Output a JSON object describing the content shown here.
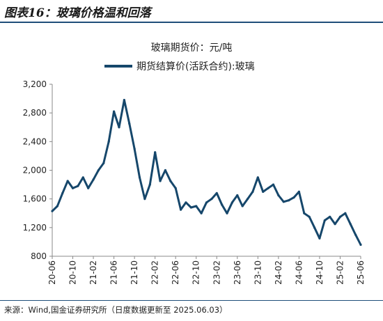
{
  "header": {
    "figure_title": "图表16：玻璃价格温和回落"
  },
  "footer": {
    "source": "来源：Wind,国金证券研究所（日度数据更新至 2025.06.03）"
  },
  "colors": {
    "series": "#16476b",
    "rule": "#1f4e79",
    "axis": "#888888"
  },
  "chart_data": {
    "type": "line",
    "title": "玻璃期货价：元/吨",
    "ylim": [
      800,
      3200
    ],
    "yticks": [
      800,
      1200,
      1600,
      2000,
      2400,
      2800,
      3200
    ],
    "ytick_labels": [
      "800",
      "1,200",
      "1,600",
      "2,000",
      "2,400",
      "2,800",
      "3,200"
    ],
    "x_tick_labels": [
      "20-06",
      "20-10",
      "21-02",
      "21-06",
      "21-10",
      "22-02",
      "22-06",
      "22-10",
      "23-02",
      "23-06",
      "23-10",
      "24-02",
      "24-06",
      "24-10",
      "25-02",
      "25-06"
    ],
    "grid": false,
    "legend_position": "top-center",
    "series": [
      {
        "name": "期货结算价(活跃合约):玻璃",
        "x": [
          "2020-06",
          "2020-07",
          "2020-08",
          "2020-09",
          "2020-10",
          "2020-11",
          "2020-12",
          "2021-01",
          "2021-02",
          "2021-03",
          "2021-04",
          "2021-05",
          "2021-06",
          "2021-07",
          "2021-08",
          "2021-09",
          "2021-10",
          "2021-11",
          "2021-12",
          "2022-01",
          "2022-02",
          "2022-03",
          "2022-04",
          "2022-05",
          "2022-06",
          "2022-07",
          "2022-08",
          "2022-09",
          "2022-10",
          "2022-11",
          "2022-12",
          "2023-01",
          "2023-02",
          "2023-03",
          "2023-04",
          "2023-05",
          "2023-06",
          "2023-07",
          "2023-08",
          "2023-09",
          "2023-10",
          "2023-11",
          "2023-12",
          "2024-01",
          "2024-02",
          "2024-03",
          "2024-04",
          "2024-05",
          "2024-06",
          "2024-07",
          "2024-08",
          "2024-09",
          "2024-10",
          "2024-11",
          "2024-12",
          "2025-01",
          "2025-02",
          "2025-03",
          "2025-04",
          "2025-05",
          "2025-06"
        ],
        "values": [
          1430,
          1500,
          1680,
          1850,
          1750,
          1780,
          1900,
          1750,
          1870,
          2000,
          2100,
          2400,
          2820,
          2600,
          2980,
          2650,
          2300,
          1900,
          1600,
          1800,
          2250,
          1850,
          2000,
          1850,
          1750,
          1450,
          1550,
          1480,
          1500,
          1400,
          1550,
          1600,
          1680,
          1520,
          1400,
          1550,
          1650,
          1500,
          1600,
          1700,
          1900,
          1700,
          1750,
          1800,
          1650,
          1560,
          1580,
          1620,
          1700,
          1400,
          1350,
          1200,
          1050,
          1300,
          1350,
          1250,
          1350,
          1400,
          1250,
          1100,
          960
        ]
      }
    ]
  }
}
